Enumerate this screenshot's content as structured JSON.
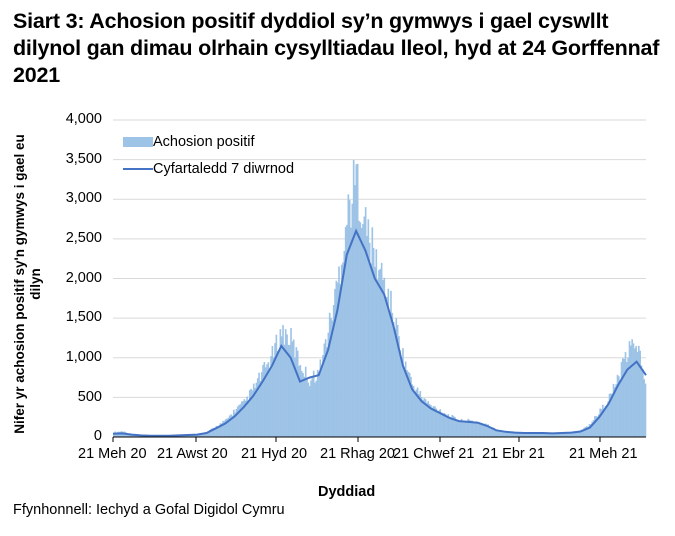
{
  "title": "Siart 3: Achosion positif dyddiol sy’n gymwys i gael cyswllt dilynol gan dimau olrhain cysylltiadau lleol, hyd at 24 Gorffennaf 2021",
  "source": "Ffynhonnell: Iechyd a Gofal Digidol Cymru",
  "colors": {
    "bars": "#9dc3e6",
    "line": "#4472c4",
    "grid": "#d9d9d9"
  },
  "chart_data": {
    "type": "bar+line",
    "title": "Siart 3: Achosion positif dyddiol sy’n gymwys i gael cyswllt dilynol gan dimau olrhain cysylltiadau lleol, hyd at 24 Gorffennaf 2021",
    "xlabel": "Dyddiad",
    "ylabel": "Nifer yr achosion positif sy'n gymwys i gael eu dilyn",
    "ylim": [
      0,
      4000
    ],
    "yticks": [
      "0",
      "500",
      "1,000",
      "1,500",
      "2,000",
      "2,500",
      "3,000",
      "3,500",
      "4,000"
    ],
    "xticks": [
      "21 Meh 20",
      "21 Awst 20",
      "21 Hyd 20",
      "21 Rhag 20",
      "21 Chwef 21",
      "21 Ebr 21",
      "21 Meh 21"
    ],
    "grid": "horizontal",
    "legend_position": "top-left inside",
    "legend": [
      "Achosion positif",
      "Cyfartaledd 7 diwrnod"
    ],
    "x": [
      "21 Meh 20",
      "28 Meh 20",
      "5 Gorff 20",
      "12 Gorff 20",
      "19 Gorff 20",
      "26 Gorff 20",
      "2 Awst 20",
      "9 Awst 20",
      "16 Awst 20",
      "23 Awst 20",
      "30 Awst 20",
      "6 Medi 20",
      "13 Medi 20",
      "20 Medi 20",
      "27 Medi 20",
      "4 Hyd 20",
      "11 Hyd 20",
      "18 Hyd 20",
      "25 Hyd 20",
      "1 Tach 20",
      "8 Tach 20",
      "15 Tach 20",
      "22 Tach 20",
      "29 Tach 20",
      "6 Rhag 20",
      "13 Rhag 20",
      "20 Rhag 20",
      "27 Rhag 20",
      "3 Ion 21",
      "10 Ion 21",
      "17 Ion 21",
      "24 Ion 21",
      "31 Ion 21",
      "7 Chwef 21",
      "14 Chwef 21",
      "21 Chwef 21",
      "28 Chwef 21",
      "7 Maw 21",
      "14 Maw 21",
      "21 Maw 21",
      "28 Maw 21",
      "4 Ebr 21",
      "11 Ebr 21",
      "18 Ebr 21",
      "25 Ebr 21",
      "2 Mai 21",
      "9 Mai 21",
      "16 Mai 21",
      "23 Mai 21",
      "30 Mai 21",
      "6 Meh 21",
      "13 Meh 21",
      "20 Meh 21",
      "27 Meh 21",
      "4 Gorff 21",
      "11 Gorff 21",
      "18 Gorff 21",
      "24 Gorff 21"
    ],
    "series": [
      {
        "name": "Achosion positif",
        "type": "bar",
        "values": [
          60,
          70,
          30,
          20,
          15,
          15,
          20,
          20,
          25,
          30,
          60,
          130,
          200,
          330,
          420,
          600,
          800,
          1000,
          1300,
          1200,
          900,
          700,
          800,
          1300,
          1900,
          2700,
          3200,
          2600,
          2200,
          1900,
          1500,
          1000,
          650,
          500,
          380,
          330,
          260,
          200,
          200,
          190,
          150,
          90,
          70,
          60,
          55,
          55,
          55,
          50,
          55,
          60,
          80,
          150,
          300,
          450,
          700,
          1000,
          1200,
          700
        ]
      },
      {
        "name": "Cyfartaledd 7 diwrnod",
        "type": "line",
        "values": [
          40,
          45,
          30,
          20,
          15,
          15,
          15,
          20,
          25,
          30,
          50,
          110,
          170,
          260,
          380,
          520,
          700,
          900,
          1150,
          1000,
          700,
          750,
          780,
          1100,
          1600,
          2300,
          2600,
          2350,
          2000,
          1800,
          1400,
          900,
          600,
          450,
          360,
          300,
          240,
          200,
          190,
          180,
          140,
          85,
          65,
          55,
          50,
          50,
          50,
          45,
          50,
          55,
          70,
          120,
          250,
          420,
          650,
          850,
          950,
          780
        ]
      }
    ]
  },
  "legend": {
    "bars": "Achosion positif",
    "line": "Cyfartaledd 7 diwrnod"
  },
  "axes": {
    "xlabel": "Dyddiad",
    "ylabel": "Nifer yr achosion positif sy'n gymwys i gael eu dilyn",
    "yticks": [
      "4,000",
      "3,500",
      "3,000",
      "2,500",
      "2,000",
      "1,500",
      "1,000",
      "500",
      "0"
    ],
    "xticks": [
      "21 Meh 20",
      "21 Awst 20",
      "21 Hyd 20",
      "21 Rhag 20",
      "21 Chwef 21",
      "21 Ebr 21",
      "21 Meh 21"
    ]
  }
}
